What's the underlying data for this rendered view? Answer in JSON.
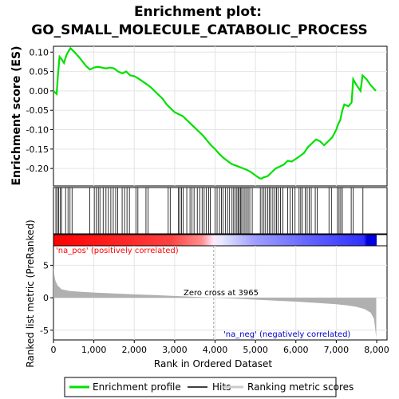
{
  "title_line1": "Enrichment plot:",
  "title_line2": "GO_SMALL_MOLECULE_CATABOLIC_PROCESS",
  "colors": {
    "es_line": "#00e000",
    "hits": "#000000",
    "metric_fill": "#b0b0b0",
    "pos_label": "#ff0000",
    "neg_label": "#0000cc",
    "zero_cross": "#aaaaaa",
    "gradient_pos": "#ff0000",
    "gradient_mid": "#ffffff",
    "gradient_neg": "#0000ff"
  },
  "chart_data": [
    {
      "name": "enrichment",
      "type": "line",
      "ylabel": "Enrichment score (ES)",
      "xlim": [
        0,
        8000
      ],
      "ylim": [
        -0.245,
        0.115
      ],
      "yticks": [
        0.1,
        0.05,
        0.0,
        -0.05,
        -0.1,
        -0.15,
        -0.2
      ],
      "ytick_labels": [
        "0.10",
        "0.05",
        "0.00",
        "-0.05",
        "-0.10",
        "-0.15",
        "-0.20"
      ],
      "grid": true,
      "x": [
        0,
        80,
        110,
        150,
        200,
        260,
        320,
        360,
        420,
        520,
        650,
        800,
        900,
        1000,
        1100,
        1200,
        1300,
        1400,
        1500,
        1600,
        1700,
        1800,
        1900,
        2000,
        2100,
        2200,
        2300,
        2400,
        2500,
        2600,
        2700,
        2800,
        2900,
        3000,
        3100,
        3200,
        3300,
        3400,
        3500,
        3600,
        3700,
        3800,
        3900,
        4000,
        4100,
        4200,
        4300,
        4400,
        4500,
        4600,
        4700,
        4800,
        4900,
        5000,
        5100,
        5150,
        5200,
        5300,
        5400,
        5500,
        5600,
        5700,
        5800,
        5900,
        6000,
        6100,
        6200,
        6300,
        6400,
        6500,
        6600,
        6700,
        6800,
        6900,
        7000,
        7050,
        7100,
        7150,
        7200,
        7300,
        7380,
        7420,
        7500,
        7600,
        7650,
        7750,
        7850,
        7980
      ],
      "y": [
        0.0,
        -0.008,
        0.04,
        0.088,
        0.082,
        0.072,
        0.092,
        0.1,
        0.11,
        0.1,
        0.085,
        0.065,
        0.055,
        0.06,
        0.062,
        0.06,
        0.058,
        0.06,
        0.058,
        0.05,
        0.045,
        0.05,
        0.04,
        0.038,
        0.032,
        0.025,
        0.018,
        0.01,
        0.0,
        -0.01,
        -0.02,
        -0.035,
        -0.045,
        -0.055,
        -0.06,
        -0.065,
        -0.075,
        -0.085,
        -0.095,
        -0.105,
        -0.115,
        -0.128,
        -0.14,
        -0.15,
        -0.162,
        -0.172,
        -0.18,
        -0.188,
        -0.192,
        -0.196,
        -0.2,
        -0.204,
        -0.21,
        -0.218,
        -0.225,
        -0.226,
        -0.223,
        -0.22,
        -0.21,
        -0.2,
        -0.195,
        -0.19,
        -0.18,
        -0.182,
        -0.175,
        -0.168,
        -0.16,
        -0.145,
        -0.135,
        -0.125,
        -0.13,
        -0.14,
        -0.13,
        -0.12,
        -0.1,
        -0.085,
        -0.075,
        -0.05,
        -0.035,
        -0.04,
        -0.03,
        0.03,
        0.015,
        0.0,
        0.04,
        0.03,
        0.015,
        0.0
      ]
    },
    {
      "name": "hits",
      "type": "scatter",
      "xlim": [
        0,
        8000
      ],
      "x": [
        60,
        95,
        130,
        165,
        200,
        300,
        360,
        410,
        460,
        900,
        1010,
        1060,
        1110,
        1150,
        1230,
        1300,
        1360,
        1420,
        1480,
        1540,
        1590,
        1700,
        1760,
        1820,
        1880,
        2040,
        2090,
        2290,
        2340,
        2840,
        2890,
        3090,
        3130,
        3170,
        3210,
        3300,
        3380,
        3430,
        3480,
        3560,
        3620,
        3680,
        3730,
        3780,
        3840,
        3880,
        4000,
        4050,
        4110,
        4160,
        4200,
        4260,
        4310,
        4360,
        4420,
        4460,
        4500,
        4540,
        4570,
        4600,
        4630,
        4660,
        4700,
        4740,
        4780,
        4820,
        4860,
        4920,
        5120,
        5160,
        5210,
        5250,
        5300,
        5340,
        5380,
        5430,
        5480,
        5520,
        5560,
        5620,
        5680,
        5800,
        5860,
        5920,
        5980,
        6080,
        6120,
        6160,
        6230,
        6280,
        6330,
        6380,
        6480,
        6530,
        6820,
        6880,
        7030,
        7070,
        7110,
        7150,
        7370,
        7420,
        7660
      ]
    },
    {
      "name": "ranked_metric",
      "type": "area",
      "xlabel": "Rank in Ordered Dataset",
      "ylabel": "Ranked list metric (PreRanked)",
      "xlim": [
        0,
        8000
      ],
      "ylim": [
        -6.5,
        8.0
      ],
      "xticks": [
        0,
        1000,
        2000,
        3000,
        4000,
        5000,
        6000,
        7000,
        8000
      ],
      "xtick_labels": [
        "0",
        "1,000",
        "2,000",
        "3,000",
        "4,000",
        "5,000",
        "6,000",
        "7,000",
        "8,000"
      ],
      "yticks": [
        5,
        0,
        -5
      ],
      "ytick_labels": [
        "5",
        "0",
        "-5"
      ],
      "grid": true,
      "x": [
        0,
        20,
        50,
        100,
        200,
        400,
        700,
        1000,
        1500,
        2000,
        2500,
        3000,
        3500,
        3965,
        4500,
        5000,
        5500,
        6000,
        6500,
        7000,
        7300,
        7500,
        7700,
        7850,
        7930,
        7960,
        7990
      ],
      "y": [
        5.0,
        3.5,
        2.6,
        1.9,
        1.3,
        1.05,
        0.9,
        0.8,
        0.65,
        0.52,
        0.4,
        0.27,
        0.13,
        0.0,
        -0.15,
        -0.3,
        -0.45,
        -0.6,
        -0.78,
        -1.0,
        -1.2,
        -1.4,
        -1.75,
        -2.3,
        -3.2,
        -4.6,
        -6.2
      ]
    }
  ],
  "pos_label": "'na_pos' (positively correlated)",
  "neg_label": "'na_neg' (negatively correlated)",
  "zero_cross_label": "Zero cross at 3965",
  "zero_cross_x": 3965,
  "legend": {
    "items": [
      {
        "label": "Enrichment profile"
      },
      {
        "label": "Hits"
      },
      {
        "label": "Ranking metric scores"
      }
    ]
  }
}
